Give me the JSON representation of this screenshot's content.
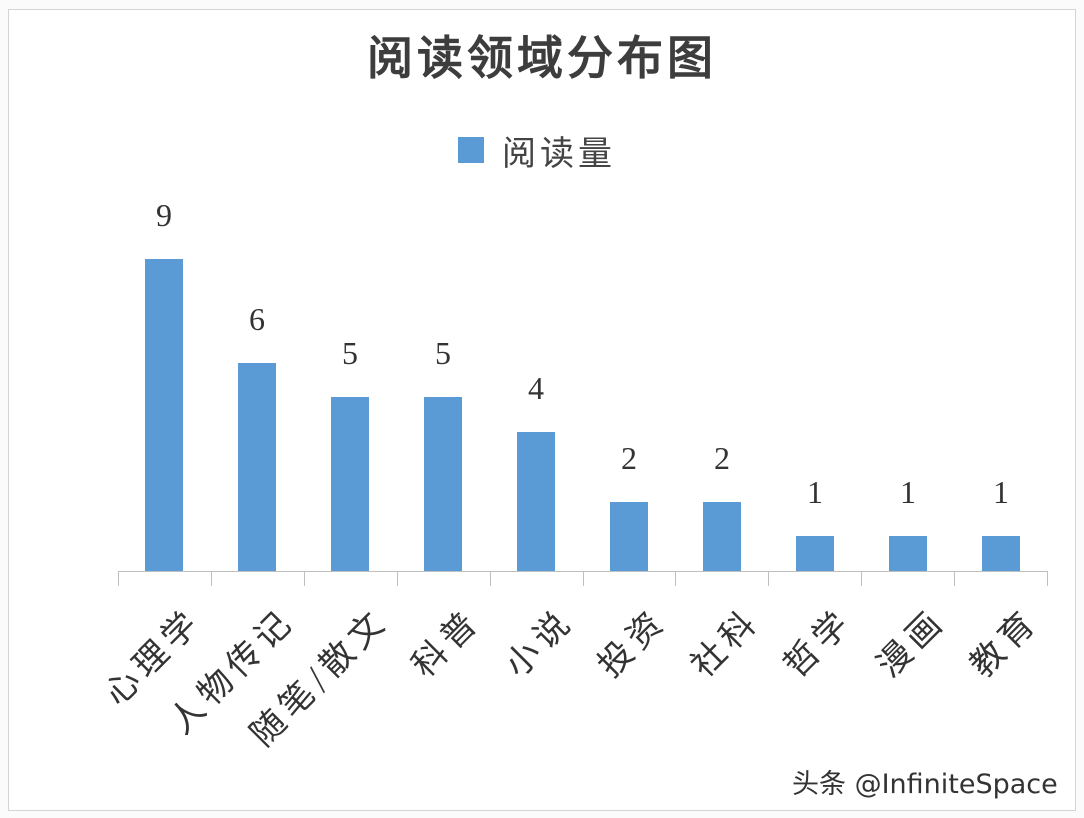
{
  "chart_data": {
    "type": "bar",
    "title": "阅读领域分布图",
    "legend": [
      {
        "name": "阅读量",
        "color": "#5b9bd5"
      }
    ],
    "legend_position": "top",
    "categories": [
      "心理学",
      "人物传记",
      "随笔/散文",
      "科普",
      "小说",
      "投资",
      "社科",
      "哲学",
      "漫画",
      "教育"
    ],
    "series": [
      {
        "name": "阅读量",
        "values": [
          9,
          6,
          5,
          5,
          4,
          2,
          2,
          1,
          1,
          1
        ],
        "color": "#5b9bd5"
      }
    ],
    "data_labels": [
      "9",
      "6",
      "5",
      "5",
      "4",
      "2",
      "2",
      "1",
      "1",
      "1"
    ],
    "xlabel": "",
    "ylabel": "",
    "ylim": [
      0,
      10
    ],
    "grid": false,
    "y_axis_visible": false,
    "x_tick_label_rotation": -45
  },
  "watermark": "头条 @InfiniteSpace"
}
